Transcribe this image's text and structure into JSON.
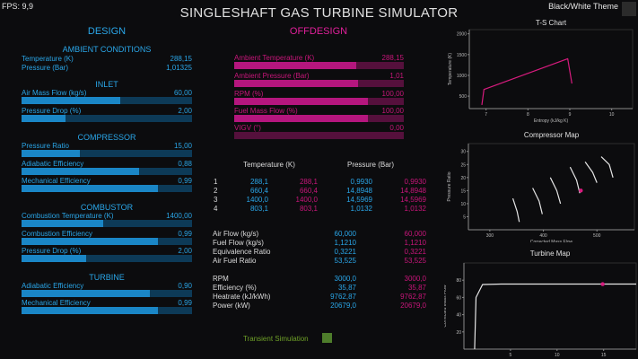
{
  "fps": "FPS: 9,9",
  "theme_label": "Black/White Theme",
  "app_title": "SINGLESHAFT GAS TURBINE SIMULATOR",
  "design_heading": "DESIGN",
  "offdesign_heading": "OFFDESIGN",
  "ambient": {
    "title": "AMBIENT CONDITIONS",
    "temperature_label": "Temperature  (K)",
    "temperature_value": "288,15",
    "pressure_label": "Pressure  (Bar)",
    "pressure_value": "1,01325"
  },
  "inlet": {
    "title": "INLET",
    "mass_flow_label": "Air Mass Flow  (kg/s)",
    "mass_flow_value": "60,00",
    "mass_flow_fill": 0.58,
    "pressure_drop_label": "Pressure Drop  (%)",
    "pressure_drop_value": "2,00",
    "pressure_drop_fill": 0.26
  },
  "compressor": {
    "title": "COMPRESSOR",
    "pressure_ratio_label": "Pressure Ratio",
    "pressure_ratio_value": "15,00",
    "pressure_ratio_fill": 0.34,
    "adiabatic_label": "Adiabatic Efficiency",
    "adiabatic_value": "0,88",
    "adiabatic_fill": 0.69,
    "mechanical_label": "Mechanical Efficiency",
    "mechanical_value": "0,99",
    "mechanical_fill": 0.8
  },
  "combustor": {
    "title": "COMBUSTOR",
    "temperature_label": "Combustion Temperature  (K)",
    "temperature_value": "1400,00",
    "temperature_fill": 0.48,
    "efficiency_label": "Combustion Efficiency",
    "efficiency_value": "0,99",
    "efficiency_fill": 0.8,
    "pressure_drop_label": "Pressure Drop  (%)",
    "pressure_drop_value": "2,00",
    "pressure_drop_fill": 0.38
  },
  "turbine": {
    "title": "TURBINE",
    "adiabatic_label": "Adiabatic Efficiency",
    "adiabatic_value": "0,90",
    "adiabatic_fill": 0.75,
    "mechanical_label": "Mechanical Efficiency",
    "mechanical_value": "0,99",
    "mechanical_fill": 0.8
  },
  "offdesign": {
    "ambient_temp_label": "Ambient Temperature  (K)",
    "ambient_temp_value": "288,15",
    "ambient_temp_fill": 0.72,
    "ambient_pressure_label": "Ambient Pressure  (Bar)",
    "ambient_pressure_value": "1,01",
    "ambient_pressure_fill": 0.73,
    "rpm_label": "RPM  (%)",
    "rpm_value": "100,00",
    "rpm_fill": 0.79,
    "fuel_label": "Fuel Mass Flow  (%)",
    "fuel_value": "100,00",
    "fuel_fill": 0.79,
    "vigv_label": "VIGV  (°)",
    "vigv_value": "0,00",
    "vigv_fill": 0.0
  },
  "state_table": {
    "col_temperature": "Temperature (K)",
    "col_pressure": "Pressure (Bar)",
    "rows": [
      {
        "idx": "1",
        "t_design": "288,1",
        "t_off": "288,1",
        "p_design": "0,9930",
        "p_off": "0,9930"
      },
      {
        "idx": "2",
        "t_design": "660,4",
        "t_off": "660,4",
        "p_design": "14,8948",
        "p_off": "14,8948"
      },
      {
        "idx": "3",
        "t_design": "1400,0",
        "t_off": "1400,0",
        "p_design": "14,5969",
        "p_off": "14,5969"
      },
      {
        "idx": "4",
        "t_design": "803,1",
        "t_off": "803,1",
        "p_design": "1,0132",
        "p_off": "1,0132"
      }
    ]
  },
  "flows": [
    {
      "label": "Air Flow (kg/s)",
      "design": "60,000",
      "off": "60,000"
    },
    {
      "label": "Fuel Flow (kg/s)",
      "design": "1,1210",
      "off": "1,1210"
    },
    {
      "label": "Equivalence Ratio",
      "design": "0,3221",
      "off": "0,3221"
    },
    {
      "label": "Air Fuel Ratio",
      "design": "53,525",
      "off": "53,525"
    }
  ],
  "performance": [
    {
      "label": "RPM",
      "design": "3000,0",
      "off": "3000,0"
    },
    {
      "label": "Efficiency (%)",
      "design": "35,87",
      "off": "35,87"
    },
    {
      "label": "Heatrate (kJ/kWh)",
      "design": "9762,87",
      "off": "9762,87"
    },
    {
      "label": "Power (kW)",
      "design": "20679,0",
      "off": "20679,0"
    }
  ],
  "transient_label": "Transient Simulation",
  "colors": {
    "accent_blue": "#2aa6e8",
    "accent_magenta": "#c8167a",
    "transient_green": "#4e7d2b"
  },
  "chart_data": [
    {
      "type": "line",
      "title": "T-S Chart",
      "xlabel": "Entropy (kJ/kg K)",
      "ylabel": "Temperature (K)",
      "xlim": [
        6.6,
        10.5
      ],
      "ylim": [
        200,
        2100
      ],
      "x_ticks": [
        "7",
        "8",
        "9",
        "10"
      ],
      "y_ticks": [
        "500",
        "1000",
        "1500",
        "2000"
      ],
      "series": [
        {
          "x": [
            6.9,
            6.95,
            8.95,
            9.05
          ],
          "y": [
            288,
            660,
            1400,
            803
          ]
        }
      ]
    },
    {
      "type": "line",
      "title": "Compressor Map",
      "xlabel": "Corrected Mass Flow",
      "ylabel": "Pressure Ratio",
      "xlim": [
        260,
        570
      ],
      "ylim": [
        0,
        33
      ],
      "x_ticks": [
        "300",
        "400",
        "500"
      ],
      "y_ticks": [
        "5",
        "10",
        "15",
        "20",
        "25",
        "30"
      ],
      "series": [
        {
          "x": [
            343,
            351,
            355
          ],
          "y": [
            12,
            7,
            3
          ]
        },
        {
          "x": [
            380,
            392,
            398
          ],
          "y": [
            16,
            11,
            6
          ]
        },
        {
          "x": [
            413,
            425,
            432
          ],
          "y": [
            20,
            15,
            10
          ]
        },
        {
          "x": [
            450,
            462,
            468
          ],
          "y": [
            24,
            19,
            14
          ]
        },
        {
          "x": [
            478,
            492,
            500
          ],
          "y": [
            26,
            22,
            18
          ]
        },
        {
          "x": [
            508,
            523,
            530
          ],
          "y": [
            28,
            25,
            20
          ]
        }
      ],
      "operating_point": {
        "x": 470,
        "y": 15
      }
    },
    {
      "type": "line",
      "title": "Turbine Map",
      "xlabel": "Pressure Ratio",
      "ylabel": "Corrected Mass Flow",
      "xlim": [
        0,
        18.5
      ],
      "ylim": [
        0,
        100
      ],
      "x_ticks": [
        "5",
        "10",
        "15"
      ],
      "y_ticks": [
        "20",
        "40",
        "60",
        "80"
      ],
      "series": [
        {
          "x": [
            1.15,
            1.3,
            2,
            4,
            18.5
          ],
          "y": [
            0,
            60,
            75,
            75.5,
            75.5
          ]
        }
      ],
      "operating_point": {
        "x": 14.9,
        "y": 75.5
      }
    }
  ]
}
